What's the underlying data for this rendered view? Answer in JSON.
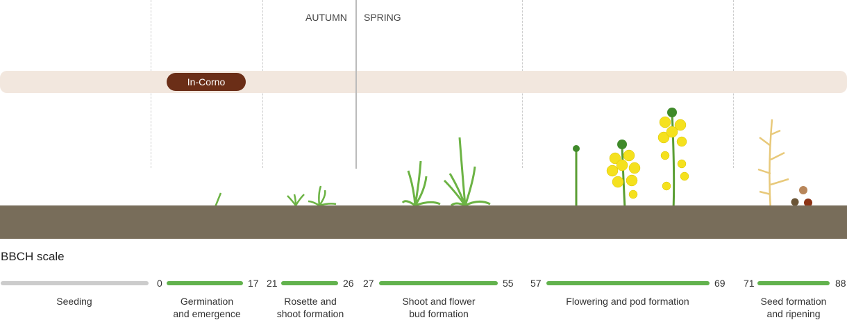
{
  "seasons": {
    "autumn": "AUTUMN",
    "spring": "SPRING"
  },
  "product": {
    "label": "In-Corno",
    "color": "#6b2e17"
  },
  "scale": {
    "title": "BBCH scale",
    "stages": [
      {
        "name_l1": "Seeding",
        "name_l2": "",
        "start": "",
        "end": "",
        "color": "#cccccc"
      },
      {
        "name_l1": "Germination",
        "name_l2": "and emergence",
        "start": "0",
        "end": "17",
        "color": "#62b24d"
      },
      {
        "name_l1": "Rosette and",
        "name_l2": "shoot formation",
        "start": "21",
        "end": "26",
        "color": "#62b24d"
      },
      {
        "name_l1": "Shoot and flower",
        "name_l2": "bud formation",
        "start": "27",
        "end": "55",
        "color": "#62b24d"
      },
      {
        "name_l1": "Flowering and pod formation",
        "name_l2": "",
        "start": "57",
        "end": "69",
        "color": "#62b24d"
      },
      {
        "name_l1": "Seed formation",
        "name_l2": "and ripening",
        "start": "71",
        "end": "88",
        "color": "#62b24d"
      }
    ]
  },
  "colors": {
    "band": "#f2e7de",
    "soil": "#786d5a",
    "flower": "#f5e11e",
    "stem": "#5a9e33"
  }
}
